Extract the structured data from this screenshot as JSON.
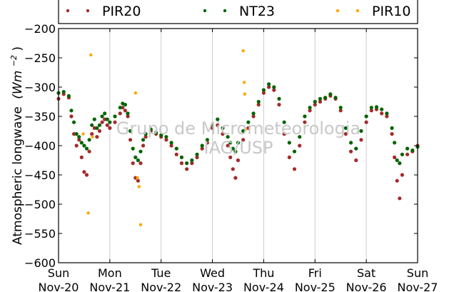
{
  "chart_data": {
    "type": "scatter",
    "ylabel": "Atmospheric longwave",
    "yunit_text": "(Wm",
    "yunit_exp": "−2",
    "yunit_close": ")",
    "ylim": [
      -600,
      -200
    ],
    "yticks": [
      {
        "value": -200,
        "label": "−200"
      },
      {
        "value": -250,
        "label": "−250"
      },
      {
        "value": -300,
        "label": "−300"
      },
      {
        "value": -350,
        "label": "−350"
      },
      {
        "value": -400,
        "label": "−400"
      },
      {
        "value": -450,
        "label": "−450"
      },
      {
        "value": -500,
        "label": "−500"
      },
      {
        "value": -550,
        "label": "−550"
      },
      {
        "value": -600,
        "label": "−600"
      }
    ],
    "xlim": [
      0,
      7
    ],
    "xticks": [
      {
        "value": 0,
        "day": "Sun",
        "date": "Nov-20"
      },
      {
        "value": 1,
        "day": "Mon",
        "date": "Nov-21"
      },
      {
        "value": 2,
        "day": "Tue",
        "date": "Nov-22"
      },
      {
        "value": 3,
        "day": "Wed",
        "date": "Nov-23"
      },
      {
        "value": 4,
        "day": "Thu",
        "date": "Nov-24"
      },
      {
        "value": 5,
        "day": "Fri",
        "date": "Nov-25"
      },
      {
        "value": 6,
        "day": "Sat",
        "date": "Nov-26"
      },
      {
        "value": 7,
        "day": "Sun",
        "date": "Nov-27"
      }
    ],
    "grid": "vertical",
    "legend_position": "top",
    "series": [
      {
        "name": "PIR20",
        "color": "#a52a2a",
        "x": [
          0.0,
          0.1,
          0.2,
          0.25,
          0.3,
          0.35,
          0.4,
          0.45,
          0.5,
          0.55,
          0.6,
          0.65,
          0.7,
          0.75,
          0.8,
          0.85,
          0.9,
          0.95,
          1.0,
          1.1,
          1.2,
          1.25,
          1.3,
          1.35,
          1.4,
          1.45,
          1.5,
          1.55,
          1.6,
          1.65,
          1.7,
          1.8,
          1.9,
          2.0,
          2.1,
          2.2,
          2.3,
          2.4,
          2.5,
          2.6,
          2.7,
          2.8,
          2.9,
          3.0,
          3.1,
          3.2,
          3.3,
          3.35,
          3.4,
          3.45,
          3.5,
          3.6,
          3.7,
          3.8,
          3.9,
          4.0,
          4.1,
          4.2,
          4.3,
          4.4,
          4.5,
          4.6,
          4.7,
          4.8,
          4.9,
          5.0,
          5.1,
          5.2,
          5.3,
          5.4,
          5.5,
          5.6,
          5.7,
          5.8,
          5.9,
          6.0,
          6.1,
          6.2,
          6.3,
          6.4,
          6.5,
          6.55,
          6.6,
          6.65,
          6.7,
          6.8,
          6.9,
          7.0
        ],
        "y": [
          -320,
          -312,
          -318,
          -350,
          -380,
          -400,
          -390,
          -420,
          -445,
          -450,
          -410,
          -380,
          -370,
          -385,
          -375,
          -360,
          -355,
          -365,
          -370,
          -360,
          -345,
          -335,
          -340,
          -350,
          -390,
          -430,
          -455,
          -460,
          -430,
          -400,
          -385,
          -375,
          -380,
          -385,
          -390,
          -400,
          -415,
          -430,
          -440,
          -430,
          -420,
          -405,
          -395,
          -370,
          -365,
          -380,
          -400,
          -420,
          -440,
          -455,
          -425,
          -390,
          -370,
          -350,
          -330,
          -310,
          -300,
          -305,
          -330,
          -380,
          -420,
          -440,
          -400,
          -360,
          -340,
          -330,
          -325,
          -320,
          -315,
          -320,
          -340,
          -380,
          -410,
          -425,
          -390,
          -360,
          -340,
          -338,
          -345,
          -350,
          -380,
          -420,
          -460,
          -490,
          -450,
          -415,
          -410,
          -400
        ]
      },
      {
        "name": "NT23",
        "color": "#006400",
        "x": [
          0.0,
          0.1,
          0.2,
          0.25,
          0.3,
          0.35,
          0.4,
          0.45,
          0.5,
          0.55,
          0.6,
          0.65,
          0.7,
          0.75,
          0.8,
          0.85,
          0.9,
          0.95,
          1.0,
          1.1,
          1.2,
          1.25,
          1.3,
          1.35,
          1.4,
          1.45,
          1.5,
          1.55,
          1.6,
          1.65,
          1.7,
          1.8,
          1.9,
          2.0,
          2.1,
          2.2,
          2.3,
          2.4,
          2.5,
          2.6,
          2.7,
          2.8,
          2.9,
          3.0,
          3.1,
          3.2,
          3.3,
          3.35,
          3.4,
          3.45,
          3.5,
          3.6,
          3.7,
          3.8,
          3.9,
          4.0,
          4.1,
          4.2,
          4.3,
          4.4,
          4.5,
          4.6,
          4.7,
          4.8,
          4.9,
          5.0,
          5.1,
          5.2,
          5.3,
          5.4,
          5.5,
          5.6,
          5.7,
          5.8,
          5.9,
          6.0,
          6.1,
          6.2,
          6.3,
          6.4,
          6.5,
          6.55,
          6.6,
          6.65,
          6.7,
          6.8,
          6.9,
          7.0
        ],
        "y": [
          -310,
          -308,
          -315,
          -340,
          -360,
          -380,
          -385,
          -395,
          -400,
          -405,
          -390,
          -365,
          -355,
          -370,
          -365,
          -350,
          -345,
          -355,
          -360,
          -350,
          -335,
          -328,
          -330,
          -345,
          -375,
          -405,
          -420,
          -425,
          -410,
          -390,
          -380,
          -372,
          -378,
          -382,
          -385,
          -395,
          -405,
          -420,
          -430,
          -425,
          -415,
          -400,
          -390,
          -365,
          -355,
          -370,
          -385,
          -395,
          -405,
          -410,
          -395,
          -375,
          -360,
          -345,
          -325,
          -305,
          -295,
          -300,
          -320,
          -360,
          -395,
          -410,
          -385,
          -350,
          -335,
          -325,
          -320,
          -318,
          -312,
          -318,
          -335,
          -370,
          -395,
          -405,
          -375,
          -350,
          -335,
          -334,
          -338,
          -345,
          -370,
          -395,
          -425,
          -430,
          -415,
          -405,
          -408,
          -402
        ]
      },
      {
        "name": "PIR10",
        "color": "#ffa500",
        "x": [
          0.48,
          0.58,
          0.63,
          0.66,
          1.5,
          1.54,
          1.57,
          1.6,
          3.6,
          3.62,
          3.63,
          3.65
        ],
        "y": [
          -380,
          -515,
          -245,
          -385,
          -310,
          -455,
          -470,
          -535,
          -238,
          -292,
          -312,
          -372
        ]
      }
    ]
  },
  "watermark": {
    "line1": "Grupo de Micrometeorologia",
    "line2": "IAG/USP"
  }
}
